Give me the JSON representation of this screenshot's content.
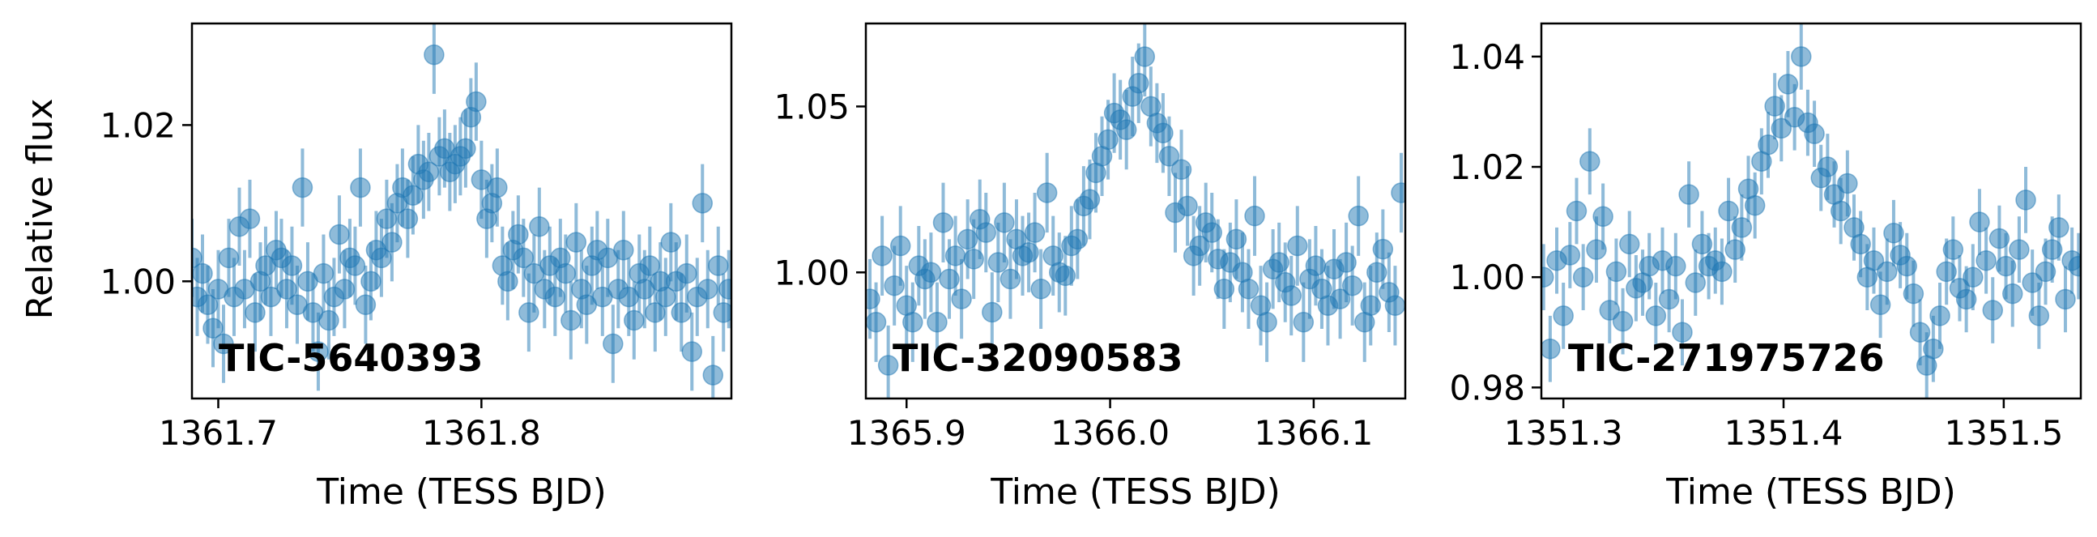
{
  "colors": {
    "marker": "#1f77b4",
    "errorbar": "#1f77b4",
    "axis": "#000000"
  },
  "shared_ylabel": "Relative flux",
  "chart_data": [
    {
      "type": "scatter",
      "title": "",
      "annotation": "TIC-5640393",
      "xlabel": "Time (TESS BJD)",
      "ylabel": "Relative flux",
      "xlim": [
        1361.69,
        1361.895
      ],
      "ylim": [
        0.985,
        1.033
      ],
      "xticks": [
        1361.7,
        1361.8
      ],
      "xtick_labels": [
        "1361.7",
        "1361.8"
      ],
      "yticks": [
        1.0,
        1.02
      ],
      "ytick_labels": [
        "1.00",
        "1.02"
      ],
      "grid": false,
      "error_bar": 0.005,
      "series": [
        {
          "x": [
            1361.69,
            1361.692,
            1361.694,
            1361.696,
            1361.698,
            1361.7,
            1361.702,
            1361.704,
            1361.706,
            1361.708,
            1361.71,
            1361.712,
            1361.714,
            1361.716,
            1361.718,
            1361.72,
            1361.722,
            1361.724,
            1361.726,
            1361.728,
            1361.73,
            1361.732,
            1361.734,
            1361.736,
            1361.738,
            1361.74,
            1361.742,
            1361.744,
            1361.746,
            1361.748,
            1361.75,
            1361.752,
            1361.754,
            1361.756,
            1361.758,
            1361.76,
            1361.762,
            1361.764,
            1361.766,
            1361.768,
            1361.77,
            1361.772,
            1361.774,
            1361.776,
            1361.778,
            1361.78,
            1361.782,
            1361.784,
            1361.786,
            1361.788,
            1361.79,
            1361.792,
            1361.794,
            1361.796,
            1361.798,
            1361.8,
            1361.802,
            1361.804,
            1361.806,
            1361.808,
            1361.81,
            1361.812,
            1361.814,
            1361.816,
            1361.818,
            1361.82,
            1361.822,
            1361.824,
            1361.826,
            1361.828,
            1361.83,
            1361.832,
            1361.834,
            1361.836,
            1361.838,
            1361.84,
            1361.842,
            1361.844,
            1361.846,
            1361.848,
            1361.85,
            1361.852,
            1361.854,
            1361.856,
            1361.858,
            1361.86,
            1361.862,
            1361.864,
            1361.866,
            1361.868,
            1361.87,
            1361.872,
            1361.874,
            1361.876,
            1361.878,
            1361.88,
            1361.882,
            1361.884,
            1361.886,
            1361.888,
            1361.89,
            1361.892,
            1361.894
          ],
          "y": [
            1.003,
            0.998,
            1.001,
            0.997,
            0.994,
            0.999,
            0.992,
            1.003,
            0.998,
            1.007,
            0.999,
            1.008,
            0.996,
            1.0,
            1.002,
            0.998,
            1.004,
            1.003,
            0.999,
            1.002,
            0.997,
            1.012,
            1.0,
            0.996,
            0.991,
            1.001,
            0.995,
            0.998,
            1.006,
            0.999,
            1.003,
            1.002,
            1.012,
            0.997,
            1.0,
            1.004,
            1.003,
            1.008,
            1.005,
            1.01,
            1.012,
            1.008,
            1.011,
            1.015,
            1.013,
            1.014,
            1.029,
            1.016,
            1.017,
            1.014,
            1.015,
            1.016,
            1.017,
            1.021,
            1.023,
            1.013,
            1.008,
            1.01,
            1.012,
            1.002,
            1.0,
            1.004,
            1.006,
            1.003,
            0.996,
            1.001,
            1.007,
            0.999,
            1.002,
            0.998,
            1.003,
            1.001,
            0.995,
            1.005,
            0.999,
            0.997,
            1.002,
            1.004,
            0.998,
            1.003,
            0.992,
            0.999,
            1.004,
            0.998,
            0.995,
            1.001,
            0.999,
            1.002,
            0.996,
            1.0,
            0.998,
            1.005,
            1.0,
            0.996,
            1.001,
            0.991,
            0.998,
            1.01,
            0.999,
            0.988,
            1.002,
            0.996,
            0.999
          ]
        }
      ]
    },
    {
      "type": "scatter",
      "title": "",
      "annotation": "TIC-32090583",
      "xlabel": "Time (TESS BJD)",
      "ylabel": "",
      "xlim": [
        1365.88,
        1366.145
      ],
      "ylim": [
        0.962,
        1.075
      ],
      "xticks": [
        1365.9,
        1366.0,
        1366.1
      ],
      "xtick_labels": [
        "1365.9",
        "1366.0",
        "1366.1"
      ],
      "yticks": [
        1.0,
        1.05
      ],
      "ytick_labels": [
        "1.00",
        "1.05"
      ],
      "grid": false,
      "error_bar": 0.012,
      "series": [
        {
          "x": [
            1365.882,
            1365.885,
            1365.888,
            1365.891,
            1365.894,
            1365.897,
            1365.9,
            1365.903,
            1365.906,
            1365.909,
            1365.912,
            1365.915,
            1365.918,
            1365.921,
            1365.924,
            1365.927,
            1365.93,
            1365.933,
            1365.936,
            1365.939,
            1365.942,
            1365.945,
            1365.948,
            1365.951,
            1365.954,
            1365.957,
            1365.96,
            1365.963,
            1365.966,
            1365.969,
            1365.972,
            1365.975,
            1365.978,
            1365.981,
            1365.984,
            1365.987,
            1365.99,
            1365.993,
            1365.996,
            1365.999,
            1366.002,
            1366.005,
            1366.008,
            1366.011,
            1366.014,
            1366.017,
            1366.02,
            1366.023,
            1366.026,
            1366.029,
            1366.032,
            1366.035,
            1366.038,
            1366.041,
            1366.044,
            1366.047,
            1366.05,
            1366.053,
            1366.056,
            1366.059,
            1366.062,
            1366.065,
            1366.068,
            1366.071,
            1366.074,
            1366.077,
            1366.08,
            1366.083,
            1366.086,
            1366.089,
            1366.092,
            1366.095,
            1366.098,
            1366.101,
            1366.104,
            1366.107,
            1366.11,
            1366.113,
            1366.116,
            1366.119,
            1366.122,
            1366.125,
            1366.128,
            1366.131,
            1366.134,
            1366.137,
            1366.14,
            1366.143
          ],
          "y": [
            0.992,
            0.985,
            1.005,
            0.972,
            0.996,
            1.008,
            0.99,
            0.985,
            1.002,
            0.998,
            1.0,
            0.985,
            1.015,
            0.998,
            1.005,
            0.992,
            1.01,
            1.004,
            1.016,
            1.012,
            0.988,
            1.003,
            1.015,
            0.998,
            1.01,
            1.005,
            1.006,
            1.012,
            0.995,
            1.024,
            1.005,
            1.0,
            0.999,
            1.008,
            1.01,
            1.02,
            1.022,
            1.03,
            1.035,
            1.04,
            1.048,
            1.046,
            1.043,
            1.053,
            1.057,
            1.065,
            1.05,
            1.045,
            1.042,
            1.035,
            1.018,
            1.031,
            1.02,
            1.005,
            1.008,
            1.015,
            1.012,
            1.004,
            0.995,
            1.003,
            1.01,
            1.0,
            0.995,
            1.017,
            0.99,
            0.985,
            1.001,
            1.003,
            0.997,
            0.993,
            1.008,
            0.985,
            0.998,
            1.002,
            0.995,
            0.99,
            1.001,
            0.992,
            1.003,
            0.996,
            1.017,
            0.985,
            0.99,
            1.0,
            1.007,
            0.994,
            0.99,
            1.024
          ]
        }
      ]
    },
    {
      "type": "scatter",
      "title": "",
      "annotation": "TIC-271975726",
      "xlabel": "Time (TESS BJD)",
      "ylabel": "",
      "xlim": [
        1351.29,
        1351.535
      ],
      "ylim": [
        0.978,
        1.046
      ],
      "xticks": [
        1351.3,
        1351.4,
        1351.5
      ],
      "xtick_labels": [
        "1351.3",
        "1351.4",
        "1351.5"
      ],
      "yticks": [
        0.98,
        1.0,
        1.02,
        1.04
      ],
      "ytick_labels": [
        "0.98",
        "1.00",
        "1.02",
        "1.04"
      ],
      "grid": false,
      "error_bar": 0.006,
      "series": [
        {
          "x": [
            1351.291,
            1351.294,
            1351.297,
            1351.3,
            1351.303,
            1351.306,
            1351.309,
            1351.312,
            1351.315,
            1351.318,
            1351.321,
            1351.324,
            1351.327,
            1351.33,
            1351.333,
            1351.336,
            1351.339,
            1351.342,
            1351.345,
            1351.348,
            1351.351,
            1351.354,
            1351.357,
            1351.36,
            1351.363,
            1351.366,
            1351.369,
            1351.372,
            1351.375,
            1351.378,
            1351.381,
            1351.384,
            1351.387,
            1351.39,
            1351.393,
            1351.396,
            1351.399,
            1351.402,
            1351.405,
            1351.408,
            1351.411,
            1351.414,
            1351.417,
            1351.42,
            1351.423,
            1351.426,
            1351.429,
            1351.432,
            1351.435,
            1351.438,
            1351.441,
            1351.444,
            1351.447,
            1351.45,
            1351.453,
            1351.456,
            1351.459,
            1351.462,
            1351.465,
            1351.468,
            1351.471,
            1351.474,
            1351.477,
            1351.48,
            1351.483,
            1351.486,
            1351.489,
            1351.492,
            1351.495,
            1351.498,
            1351.501,
            1351.504,
            1351.507,
            1351.51,
            1351.513,
            1351.516,
            1351.519,
            1351.522,
            1351.525,
            1351.528,
            1351.531,
            1351.534
          ],
          "y": [
            1.0,
            0.987,
            1.003,
            0.993,
            1.004,
            1.012,
            1.0,
            1.021,
            1.005,
            1.011,
            0.994,
            1.001,
            0.992,
            1.006,
            0.998,
            0.999,
            1.002,
            0.993,
            1.003,
            0.996,
            1.002,
            0.99,
            1.015,
            0.999,
            1.006,
            1.002,
            1.003,
            1.001,
            1.012,
            1.005,
            1.009,
            1.016,
            1.013,
            1.021,
            1.024,
            1.031,
            1.027,
            1.035,
            1.029,
            1.04,
            1.028,
            1.026,
            1.018,
            1.02,
            1.015,
            1.012,
            1.017,
            1.009,
            1.006,
            1.0,
            1.003,
            0.995,
            1.001,
            1.008,
            1.004,
            1.002,
            0.997,
            0.99,
            0.984,
            0.987,
            0.993,
            1.001,
            1.005,
            0.998,
            0.996,
            1.0,
            1.01,
            1.003,
            0.994,
            1.007,
            1.002,
            0.997,
            1.005,
            1.014,
            0.999,
            0.993,
            1.001,
            1.005,
            1.009,
            0.996,
            1.003,
            1.002
          ]
        }
      ]
    }
  ]
}
